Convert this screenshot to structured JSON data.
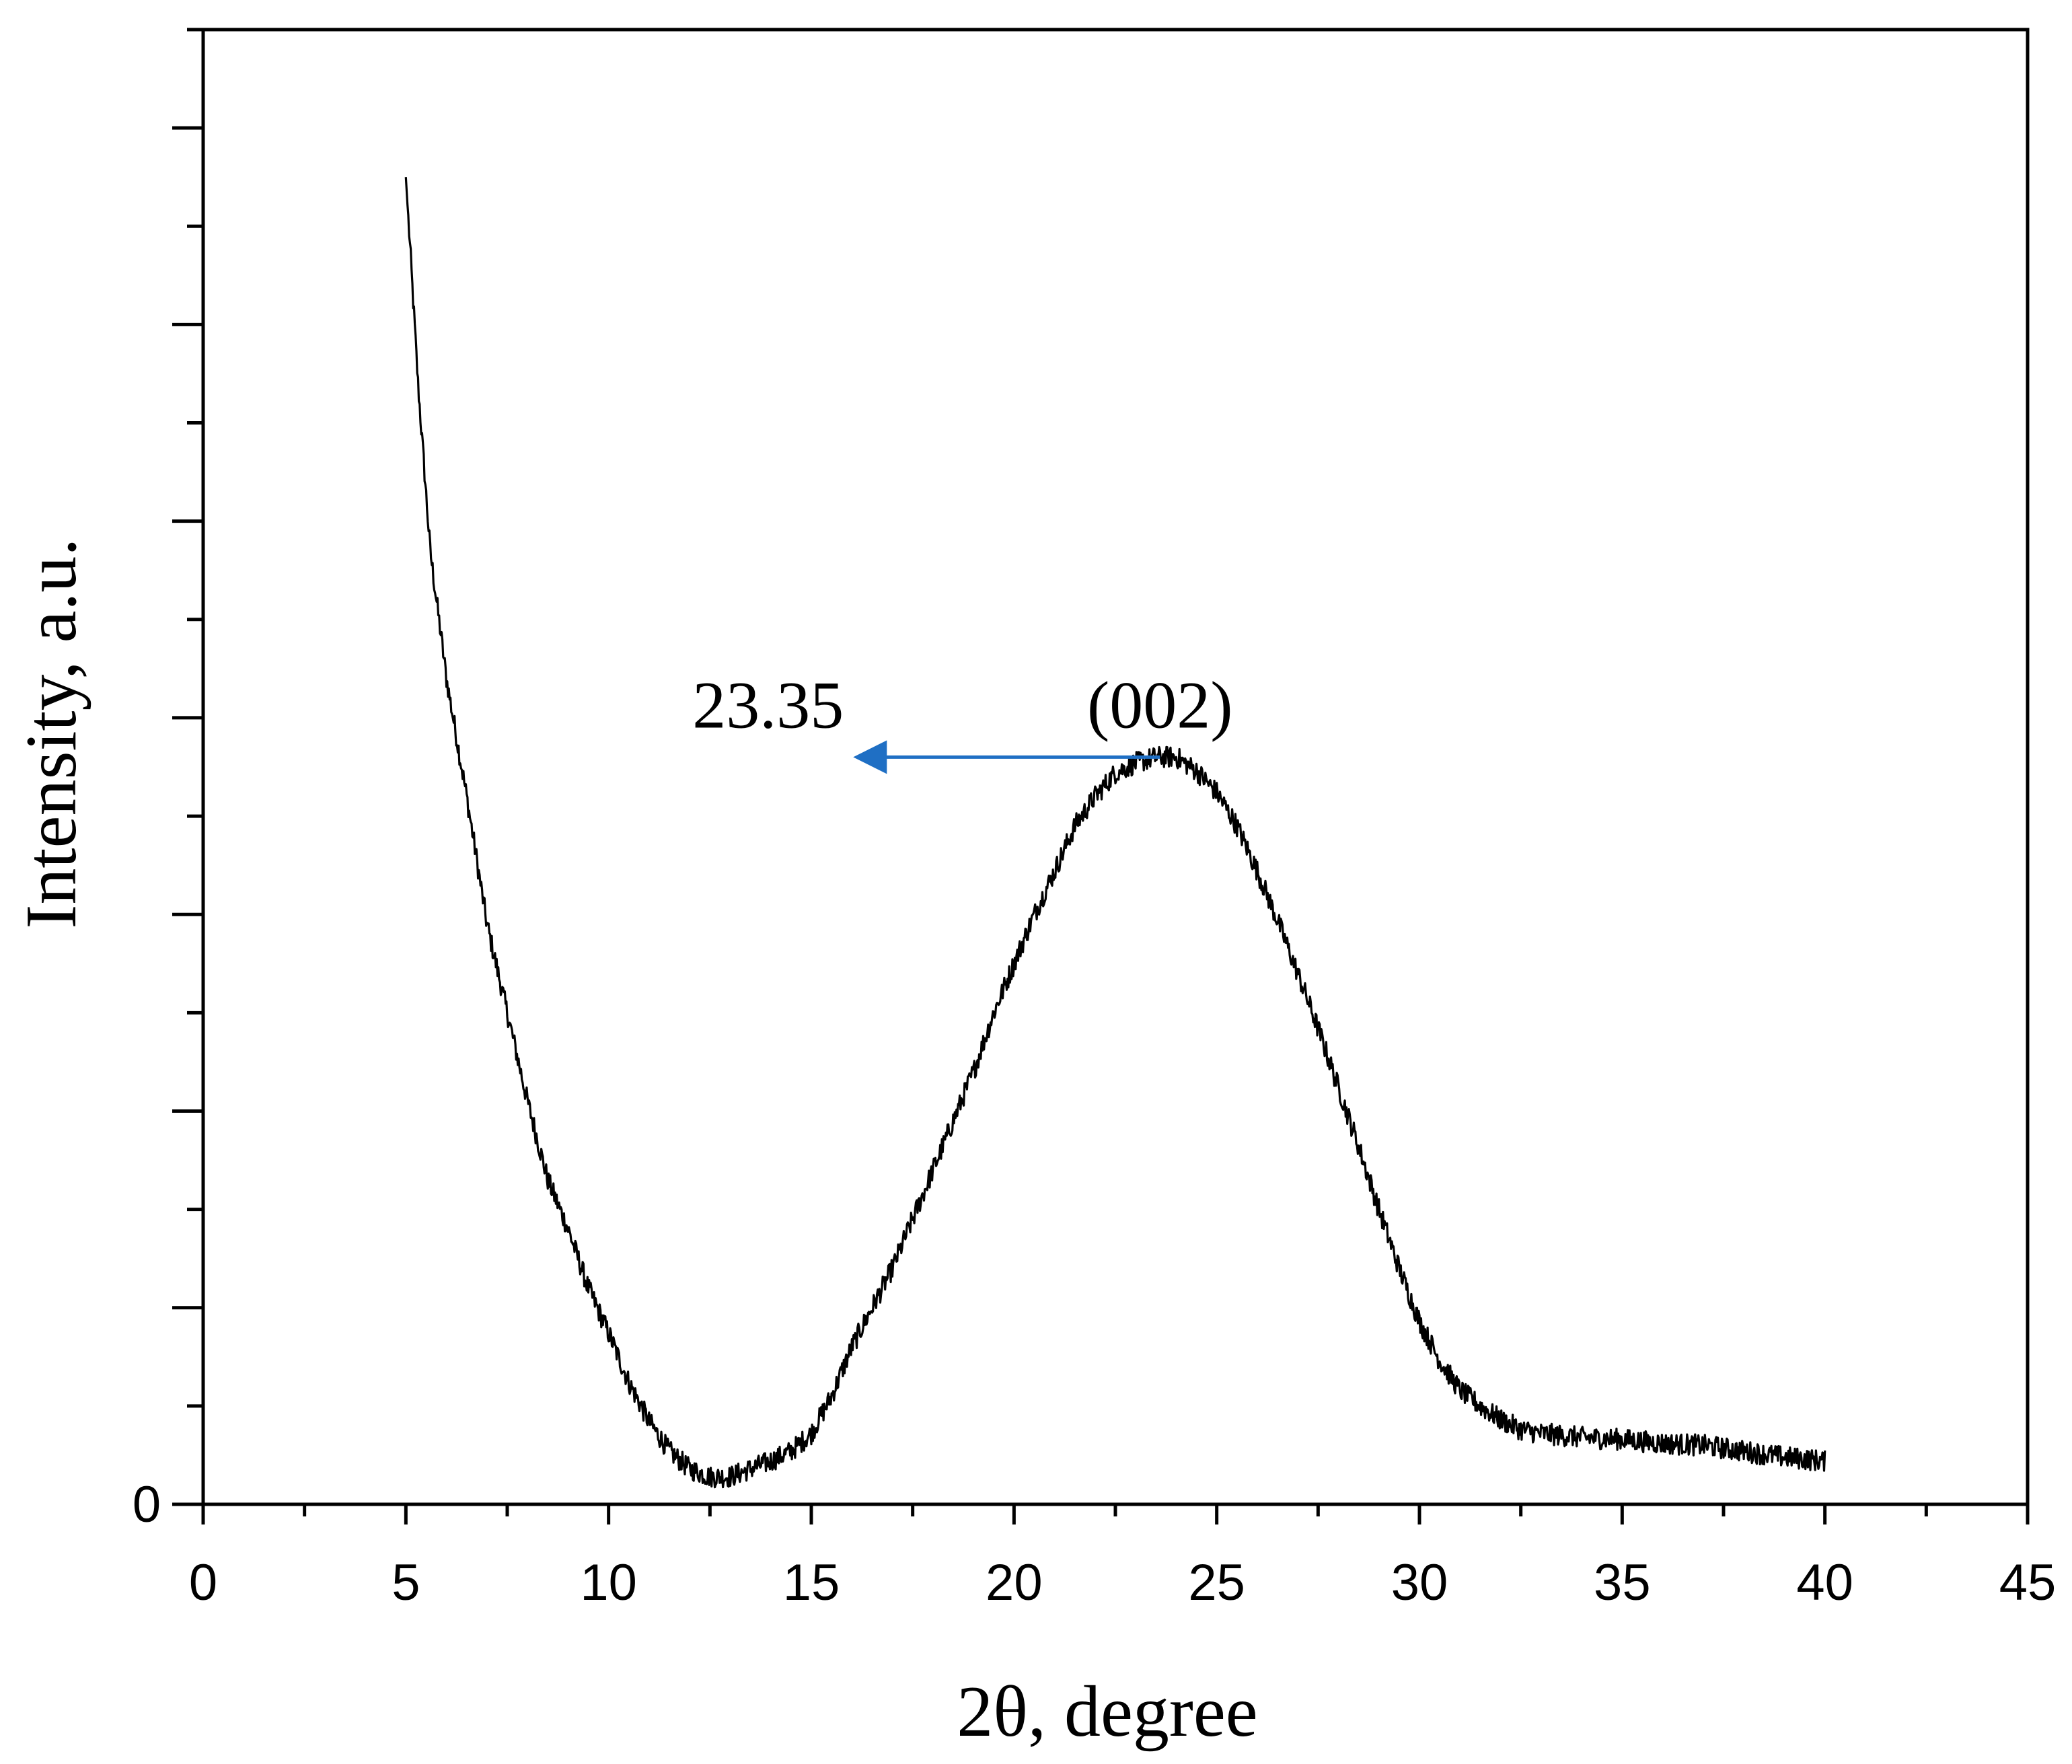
{
  "chart_data": {
    "type": "line",
    "title": "",
    "xlabel": "2θ, degree",
    "ylabel": "Intensity, a.u.",
    "xlim": [
      0,
      45
    ],
    "ylim": [
      0,
      7.5
    ],
    "x_ticks": [
      "0",
      "5",
      "10",
      "15",
      "20",
      "25",
      "30",
      "35",
      "40",
      "45"
    ],
    "y_tick_labels": [
      "0"
    ],
    "grid": false,
    "legend": "none",
    "series": [
      {
        "color": "#000000",
        "x": [
          5,
          5.3,
          5.6,
          6,
          6.5,
          7,
          7.5,
          8,
          8.5,
          9,
          9.5,
          10,
          10.5,
          11,
          11.5,
          12,
          12.5,
          13,
          13.5,
          14,
          14.5,
          15,
          15.5,
          16,
          16.5,
          17,
          17.5,
          18,
          18.5,
          19,
          19.5,
          20,
          20.5,
          21,
          21.5,
          22,
          22.5,
          23,
          23.5,
          24,
          24.5,
          25,
          25.5,
          26,
          26.5,
          27,
          27.5,
          28,
          28.5,
          29,
          29.5,
          30,
          30.5,
          31,
          31.5,
          32,
          32.5,
          33,
          34,
          35,
          36,
          37,
          38,
          39,
          40
        ],
        "y": [
          6.75,
          5.7,
          4.85,
          4.2,
          3.6,
          2.95,
          2.5,
          2.05,
          1.65,
          1.4,
          1.1,
          0.87,
          0.62,
          0.42,
          0.27,
          0.18,
          0.14,
          0.14,
          0.18,
          0.22,
          0.27,
          0.36,
          0.55,
          0.8,
          1.0,
          1.2,
          1.45,
          1.7,
          1.95,
          2.2,
          2.5,
          2.75,
          3.0,
          3.22,
          3.45,
          3.6,
          3.72,
          3.77,
          3.8,
          3.8,
          3.73,
          3.62,
          3.45,
          3.22,
          2.97,
          2.7,
          2.42,
          2.12,
          1.82,
          1.5,
          1.2,
          0.93,
          0.73,
          0.58,
          0.5,
          0.43,
          0.38,
          0.36,
          0.34,
          0.33,
          0.31,
          0.3,
          0.27,
          0.24,
          0.22
        ]
      }
    ],
    "annotations": [
      {
        "text": "(002)",
        "x": 23.6,
        "y": 3.95
      },
      {
        "text": "23.35",
        "x": 15.8,
        "y": 3.95,
        "arrow_from": [
          23.6,
          3.8
        ],
        "arrow_to": [
          16.2,
          3.8
        ],
        "arrow_color": "#1f6fc4"
      }
    ]
  }
}
